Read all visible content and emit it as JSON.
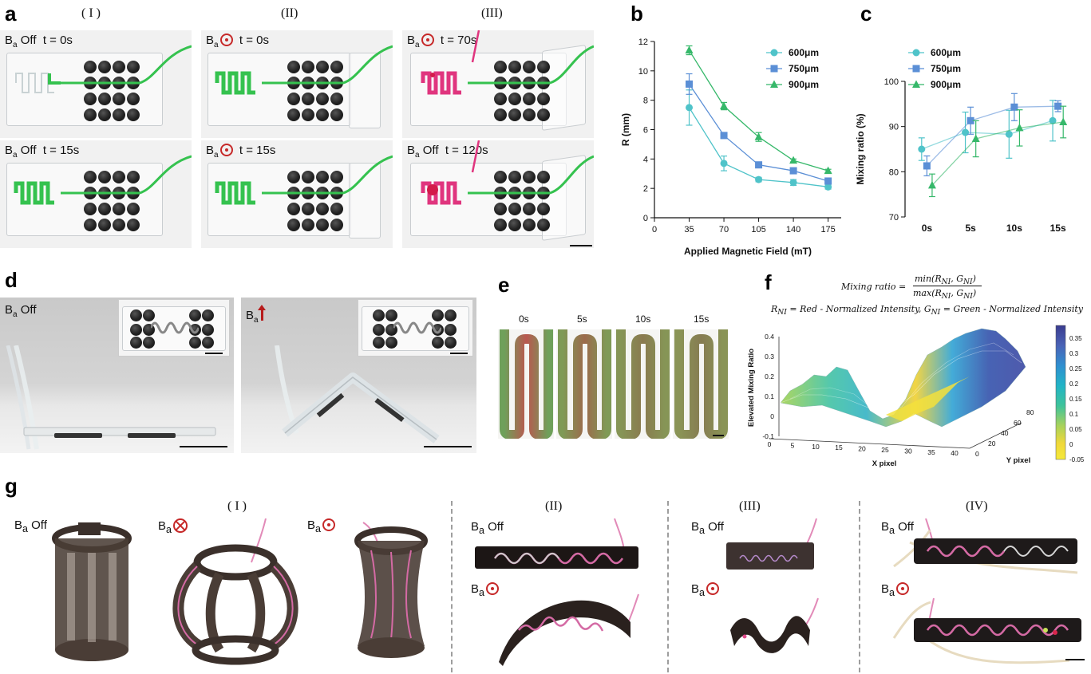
{
  "panels": {
    "a": {
      "letter": "a",
      "columns": [
        "( I )",
        "(II)",
        "(III)"
      ],
      "cells": [
        {
          "field": "Off",
          "symbol": "none",
          "time": "t = 0s"
        },
        {
          "field": "",
          "symbol": "dot",
          "time": "t = 0s"
        },
        {
          "field": "",
          "symbol": "dot",
          "time": "t = 70s"
        },
        {
          "field": "Off",
          "symbol": "none",
          "time": "t = 15s"
        },
        {
          "field": "",
          "symbol": "dot",
          "time": "t = 15s"
        },
        {
          "field": "Off",
          "symbol": "none",
          "time": "t = 120s"
        }
      ]
    },
    "b": {
      "letter": "b"
    },
    "c": {
      "letter": "c"
    },
    "d": {
      "letter": "d",
      "photos": [
        {
          "field": "Off",
          "symbol": "none"
        },
        {
          "field": "",
          "symbol": "arrow-up"
        }
      ]
    },
    "e": {
      "letter": "e",
      "times": [
        "0s",
        "5s",
        "10s",
        "15s"
      ]
    },
    "f": {
      "letter": "f",
      "formula_lhs": "Mixing ratio  =",
      "formula_num": "min(R",
      "formula_num_sub1": "NI",
      "formula_num_mid": ", G",
      "formula_num_sub2": "NI",
      "formula_num_end": ")",
      "formula_den": "max(R",
      "formula_den_sub1": "NI",
      "formula_den_mid": ", G",
      "formula_den_sub2": "NI",
      "formula_den_end": ")",
      "definition_r": "R",
      "definition_r_sub": "NI",
      "definition_r_text": " = Red - Normalized Intensity,  G",
      "definition_g_sub": "NI",
      "definition_g_text": " = Green - Normalized Intensity",
      "zlabel": "Elevated Mixing Ratio",
      "xlabel": "X pixel",
      "ylabel": "Y pixel",
      "z_ticks": [
        "0.4",
        "0.3",
        "0.2",
        "0.1",
        "0",
        "-0.1"
      ],
      "x_ticks": [
        "0",
        "5",
        "10",
        "15",
        "20",
        "25",
        "30",
        "35",
        "40"
      ],
      "y_ticks": [
        "0",
        "20",
        "40",
        "60",
        "80"
      ],
      "colorbar_ticks": [
        "0.35",
        "0.3",
        "0.25",
        "0.2",
        "0.15",
        "0.1",
        "0.05",
        "0",
        "-0.05"
      ]
    },
    "g": {
      "letter": "g",
      "groups": [
        "( I )",
        "(II)",
        "(III)",
        "(IV)"
      ],
      "labels": [
        {
          "field": "Off",
          "symbol": "none"
        },
        {
          "field": "",
          "symbol": "cross"
        },
        {
          "field": "",
          "symbol": "dot"
        },
        {
          "field": "Off",
          "symbol": "none"
        },
        {
          "field": "",
          "symbol": "dot"
        },
        {
          "field": "Off",
          "symbol": "none"
        },
        {
          "field": "",
          "symbol": "dot"
        },
        {
          "field": "Off",
          "symbol": "none"
        },
        {
          "field": "",
          "symbol": "dot"
        }
      ]
    }
  },
  "field_symbol": "B",
  "field_sub": "a",
  "colors": {
    "s600": "#4fc3c9",
    "s750": "#5b8fd6",
    "s900": "#36b86a",
    "red_symbol": "#c62828"
  },
  "chart_data": [
    {
      "id": "b",
      "type": "line",
      "xlabel": "Applied Magnetic Field (mT)",
      "ylabel": "R (mm)",
      "x": [
        35,
        70,
        105,
        140,
        175
      ],
      "xlim": [
        0,
        175
      ],
      "ylim": [
        0,
        12
      ],
      "xticks": [
        0,
        35,
        70,
        105,
        140,
        175
      ],
      "yticks": [
        0,
        2,
        4,
        6,
        8,
        10,
        12
      ],
      "legend_position": "top-right",
      "series": [
        {
          "name": "600μm",
          "marker": "circle",
          "color": "#4fc3c9",
          "values": [
            7.5,
            3.7,
            2.6,
            2.4,
            2.1
          ],
          "errors": [
            1.2,
            0.5,
            0.15,
            0.2,
            0.15
          ]
        },
        {
          "name": "750μm",
          "marker": "square",
          "color": "#5b8fd6",
          "values": [
            9.1,
            5.6,
            3.6,
            3.2,
            2.5
          ],
          "errors": [
            0.7,
            0.2,
            0.15,
            0.15,
            0.15
          ]
        },
        {
          "name": "900μm",
          "marker": "triangle",
          "color": "#36b86a",
          "values": [
            11.4,
            7.6,
            5.5,
            3.9,
            3.2
          ],
          "errors": [
            0.3,
            0.25,
            0.3,
            0.1,
            0.1
          ]
        }
      ]
    },
    {
      "id": "c",
      "type": "line",
      "xlabel": "",
      "ylabel": "Mixing ratio (%)",
      "categories": [
        "0s",
        "5s",
        "10s",
        "15s"
      ],
      "ylim": [
        70,
        100
      ],
      "yticks": [
        70,
        80,
        90,
        100
      ],
      "legend_position": "top-left",
      "series": [
        {
          "name": "600μm",
          "marker": "circle",
          "color": "#4fc3c9",
          "values": [
            85,
            88.7,
            88.3,
            91.3
          ],
          "errors": [
            2.5,
            4.5,
            5.3,
            4.5
          ]
        },
        {
          "name": "750μm",
          "marker": "square",
          "color": "#5b8fd6",
          "values": [
            81.3,
            91.3,
            94.3,
            94.5
          ],
          "errors": [
            2.2,
            3.0,
            3.0,
            1.2
          ]
        },
        {
          "name": "900μm",
          "marker": "triangle",
          "color": "#36b86a",
          "values": [
            77,
            87.3,
            89.7,
            91
          ],
          "errors": [
            2.5,
            4.0,
            4.0,
            3.5
          ]
        }
      ]
    }
  ]
}
